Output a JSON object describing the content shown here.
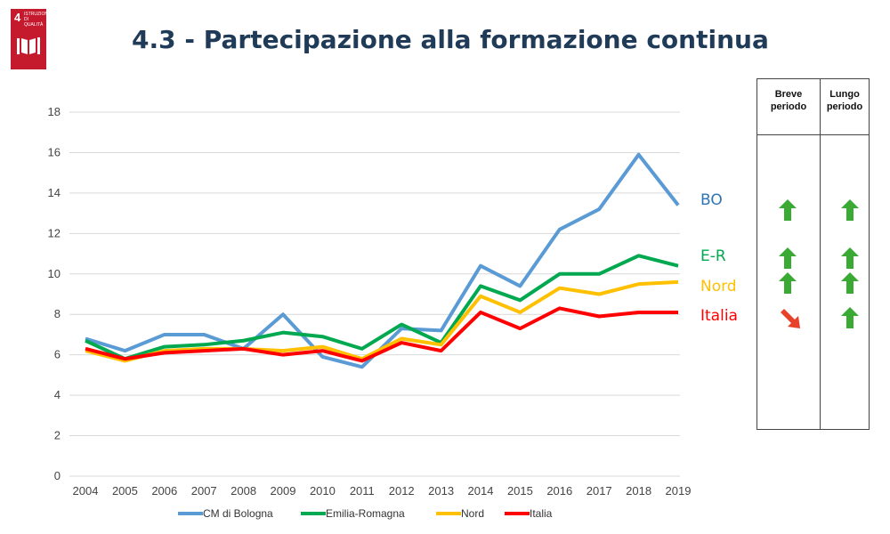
{
  "header": {
    "title": "4.3 - Partecipazione alla formazione continua",
    "logo": {
      "number": "4",
      "text": "ISTRUZIONE DI QUALITÀ",
      "color": "#c5192d"
    }
  },
  "chart_data": {
    "type": "line",
    "title": "",
    "xlabel": "",
    "ylabel": "",
    "x": [
      "2004",
      "2005",
      "2006",
      "2007",
      "2008",
      "2009",
      "2010",
      "2011",
      "2012",
      "2013",
      "2014",
      "2015",
      "2016",
      "2017",
      "2018",
      "2019"
    ],
    "ylim": [
      0,
      18
    ],
    "yticks": [
      0,
      2,
      4,
      6,
      8,
      10,
      12,
      14,
      16,
      18
    ],
    "grid": true,
    "legend": "bottom",
    "series": [
      {
        "name": "CM di Bologna",
        "color": "#5b9bd5",
        "values": [
          6.8,
          6.2,
          7.0,
          7.0,
          6.3,
          8.0,
          5.9,
          5.4,
          7.3,
          7.2,
          10.4,
          9.4,
          12.2,
          13.2,
          15.9,
          13.4
        ]
      },
      {
        "name": "Emilia-Romagna",
        "color": "#00a84f",
        "values": [
          6.7,
          5.8,
          6.4,
          6.5,
          6.7,
          7.1,
          6.9,
          6.3,
          7.5,
          6.6,
          9.4,
          8.7,
          10.0,
          10.0,
          10.9,
          10.4
        ]
      },
      {
        "name": "Nord",
        "color": "#ffc000",
        "values": [
          6.2,
          5.7,
          6.2,
          6.3,
          6.3,
          6.2,
          6.4,
          5.8,
          6.8,
          6.5,
          8.9,
          8.1,
          9.3,
          9.0,
          9.5,
          9.6
        ]
      },
      {
        "name": "Italia",
        "color": "#ff0000",
        "values": [
          6.3,
          5.8,
          6.1,
          6.2,
          6.3,
          6.0,
          6.2,
          5.7,
          6.6,
          6.2,
          8.1,
          7.3,
          8.3,
          7.9,
          8.1,
          8.1
        ]
      }
    ]
  },
  "series_labels": [
    {
      "text": "BO",
      "color": "#2e75b6"
    },
    {
      "text": "E-R",
      "color": "#00a84f"
    },
    {
      "text": "Nord",
      "color": "#ffc000"
    },
    {
      "text": "Italia",
      "color": "#ff0000"
    }
  ],
  "trend_table": {
    "headers": [
      "Breve periodo",
      "Lungo periodo"
    ],
    "rows": [
      {
        "short": "up",
        "long": "up"
      },
      {
        "short": "up",
        "long": "up"
      },
      {
        "short": "up",
        "long": "up"
      },
      {
        "short": "down-right",
        "long": "up"
      }
    ],
    "colors": {
      "up": "#3aaa35",
      "down": "#e8412a"
    }
  }
}
